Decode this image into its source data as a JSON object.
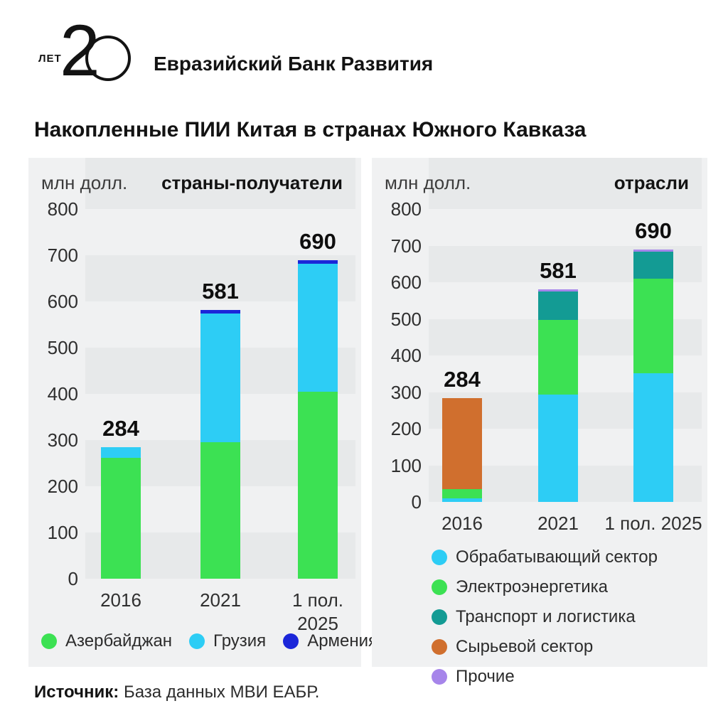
{
  "header": {
    "logo": {
      "years_label": "ЛЕТ",
      "number": "2",
      "circle_blue": "#44c0ef",
      "circle_green": "#3cc64c"
    },
    "bank_name": "Евразийский Банк Развития"
  },
  "title": "Накопленные ПИИ Китая в странах Южного Кавказа",
  "source": {
    "label": "Источник:",
    "text": " База данных МВИ ЕАБР."
  },
  "ui_colors": {
    "panel_bg": "#f0f1f2",
    "stripe": "#e7e9ea",
    "text": "#1c1c1c"
  },
  "chart_data": [
    {
      "type": "bar",
      "stacked": true,
      "panel_title": "страны-получатели",
      "unit_label": "млн долл.",
      "categories": [
        "2016",
        "2021",
        "1 пол.\n2025"
      ],
      "series": [
        {
          "name": "Азербайджан",
          "color": "#3ce153",
          "values": [
            262,
            295,
            405
          ]
        },
        {
          "name": "Грузия",
          "color": "#2dcdf5",
          "values": [
            22,
            279,
            276
          ]
        },
        {
          "name": "Армения",
          "color": "#1b26d9",
          "values": [
            0,
            7,
            9
          ]
        }
      ],
      "totals": [
        284,
        581,
        690
      ],
      "ylabel": "млн долл.",
      "ylim": [
        0,
        800
      ],
      "yticks": [
        0,
        100,
        200,
        300,
        400,
        500,
        600,
        700,
        800
      ],
      "legend_position": "bottom-horizontal",
      "grid": "striped-bands"
    },
    {
      "type": "bar",
      "stacked": true,
      "panel_title": "отрасли",
      "unit_label": "млн долл.",
      "categories": [
        "2016",
        "2021",
        "1 пол. 2025"
      ],
      "series": [
        {
          "name": "Обрабатывающий сектор",
          "color": "#2dcdf5",
          "values": [
            10,
            293,
            352
          ]
        },
        {
          "name": "Электроэнергетика",
          "color": "#3ce153",
          "values": [
            25,
            205,
            258
          ]
        },
        {
          "name": "Транспорт и логистика",
          "color": "#139b94",
          "values": [
            0,
            77,
            74
          ]
        },
        {
          "name": "Сырьевой сектор",
          "color": "#d06f2e",
          "values": [
            249,
            0,
            0
          ]
        },
        {
          "name": "Прочие",
          "color": "#a685ea",
          "values": [
            0,
            6,
            6
          ]
        }
      ],
      "totals": [
        284,
        581,
        690
      ],
      "ylabel": "млн долл.",
      "ylim": [
        0,
        800
      ],
      "yticks": [
        0,
        100,
        200,
        300,
        400,
        500,
        600,
        700,
        800
      ],
      "legend_position": "bottom-vertical",
      "grid": "striped-bands"
    }
  ]
}
